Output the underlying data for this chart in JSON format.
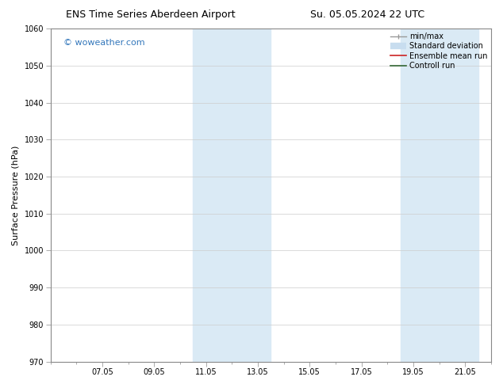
{
  "title_left": "ENS Time Series Aberdeen Airport",
  "title_right": "Su. 05.05.2024 22 UTC",
  "ylabel": "Surface Pressure (hPa)",
  "ylim": [
    970,
    1060
  ],
  "yticks": [
    970,
    980,
    990,
    1000,
    1010,
    1020,
    1030,
    1040,
    1050,
    1060
  ],
  "xtick_labels": [
    "07.05",
    "09.05",
    "11.05",
    "13.05",
    "15.05",
    "17.05",
    "19.05",
    "21.05"
  ],
  "xtick_positions": [
    2,
    4,
    6,
    8,
    10,
    12,
    14,
    16
  ],
  "xlim": [
    0,
    17
  ],
  "shaded_bands": [
    {
      "x_start": 5.5,
      "x_end": 8.5
    },
    {
      "x_start": 13.5,
      "x_end": 16.5
    }
  ],
  "shaded_color": "#daeaf5",
  "watermark_text": "© woweather.com",
  "watermark_color": "#3377bb",
  "legend_items": [
    {
      "label": "min/max",
      "color": "#999999"
    },
    {
      "label": "Standard deviation",
      "color": "#c8ddef"
    },
    {
      "label": "Ensemble mean run",
      "color": "#cc2222"
    },
    {
      "label": "Controll run",
      "color": "#336633"
    }
  ],
  "bg_color": "#ffffff",
  "grid_color": "#cccccc",
  "title_fontsize": 9,
  "ylabel_fontsize": 8,
  "tick_fontsize": 7,
  "watermark_fontsize": 8,
  "legend_fontsize": 7,
  "spine_color": "#888888",
  "figwidth": 6.34,
  "figheight": 4.9,
  "dpi": 100
}
